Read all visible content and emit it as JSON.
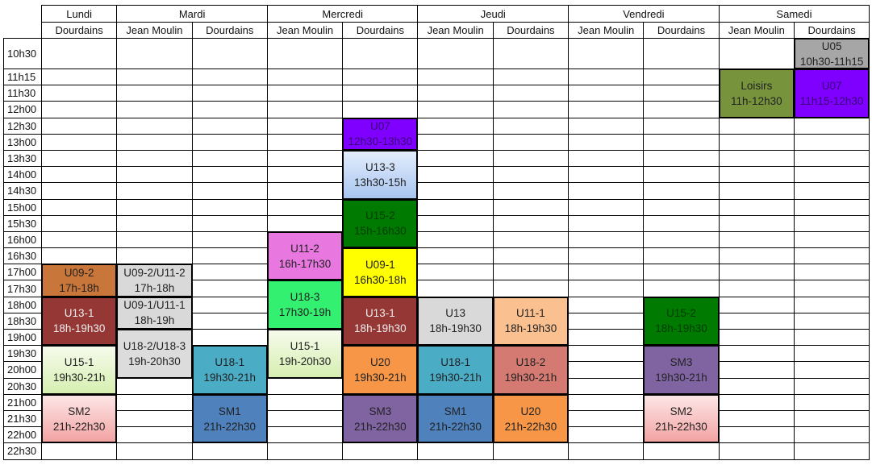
{
  "days": [
    {
      "name": "Lundi",
      "sites": [
        "Dourdains"
      ]
    },
    {
      "name": "Mardi",
      "sites": [
        "Jean Moulin",
        "Dourdains"
      ]
    },
    {
      "name": "Mercredi",
      "sites": [
        "Jean Moulin",
        "Dourdains"
      ]
    },
    {
      "name": "Jeudi",
      "sites": [
        "Jean Moulin",
        "Dourdains"
      ]
    },
    {
      "name": "Vendredi",
      "sites": [
        "Jean Moulin",
        "Dourdains"
      ]
    },
    {
      "name": "Samedi",
      "sites": [
        "Jean Moulin",
        "Dourdains"
      ]
    }
  ],
  "times": [
    "10h30",
    "11h15",
    "11h30",
    "12h00",
    "12h30",
    "13h00",
    "13h30",
    "14h00",
    "14h30",
    "15h00",
    "15h30",
    "16h00",
    "16h30",
    "17h00",
    "17h30",
    "18h00",
    "18h30",
    "19h00",
    "19h30",
    "20h00",
    "20h30",
    "21h00",
    "21h30",
    "22h00",
    "22h30"
  ],
  "events": [
    {
      "day": "Lundi",
      "site": "Dourdains",
      "label": "U09-2",
      "time": "17h-18h",
      "color": "#c8763a",
      "text": "#222"
    },
    {
      "day": "Lundi",
      "site": "Dourdains",
      "label": "U13-1",
      "time": "18h-19h30",
      "color": "#953735",
      "text": "#eee"
    },
    {
      "day": "Lundi",
      "site": "Dourdains",
      "label": "U15-1",
      "time": "19h30-21h",
      "color": "linear-gradient(#f6fbec,#d6efb0)",
      "text": "#222"
    },
    {
      "day": "Lundi",
      "site": "Dourdains",
      "label": "SM2",
      "time": "21h-22h30",
      "color": "linear-gradient(#fde6e6,#f3a3a3)",
      "text": "#222"
    },
    {
      "day": "Mardi",
      "site": "Jean Moulin",
      "label": "U09-2/U11-2",
      "time": "17h-18h",
      "color": "#d9d9d9",
      "text": "#222"
    },
    {
      "day": "Mardi",
      "site": "Jean Moulin",
      "label": "U09-1/U11-1",
      "time": "18h-19h",
      "color": "#d9d9d9",
      "text": "#222"
    },
    {
      "day": "Mardi",
      "site": "Jean Moulin",
      "label": "U18-2/U18-3",
      "time": "19h-20h30",
      "color": "#dcdcdc",
      "text": "#222"
    },
    {
      "day": "Mardi",
      "site": "Dourdains",
      "label": "U18-1",
      "time": "19h30-21h",
      "color": "#4bacc6",
      "text": "#222"
    },
    {
      "day": "Mardi",
      "site": "Dourdains",
      "label": "SM1",
      "time": "21h-22h30",
      "color": "#4f81bd",
      "text": "#222"
    },
    {
      "day": "Mercredi",
      "site": "Jean Moulin",
      "label": "U11-2",
      "time": "16h-17h30",
      "color": "#e878e0",
      "text": "#222"
    },
    {
      "day": "Mercredi",
      "site": "Jean Moulin",
      "label": "U18-3",
      "time": "17h30-19h",
      "color": "#33f070",
      "text": "#222"
    },
    {
      "day": "Mercredi",
      "site": "Jean Moulin",
      "label": "U15-1",
      "time": "19h-20h30",
      "color": "linear-gradient(#f6fbec,#d6efb0)",
      "text": "#222"
    },
    {
      "day": "Mercredi",
      "site": "Dourdains",
      "label": "U07",
      "time": "12h30-13h30",
      "color": "#7f00ff",
      "text": "#3a0077"
    },
    {
      "day": "Mercredi",
      "site": "Dourdains",
      "label": "U13-3",
      "time": "13h30-15h",
      "color": "linear-gradient(#e3edfc,#a8c5ef)",
      "text": "#222"
    },
    {
      "day": "Mercredi",
      "site": "Dourdains",
      "label": "U15-2",
      "time": "15h-16h30",
      "color": "#007a00",
      "text": "#003c00"
    },
    {
      "day": "Mercredi",
      "site": "Dourdains",
      "label": "U09-1",
      "time": "16h30-18h",
      "color": "#ffff00",
      "text": "#222"
    },
    {
      "day": "Mercredi",
      "site": "Dourdains",
      "label": "U13-1",
      "time": "18h-19h30",
      "color": "#953735",
      "text": "#eee"
    },
    {
      "day": "Mercredi",
      "site": "Dourdains",
      "label": "U20",
      "time": "19h30-21h",
      "color": "#f79646",
      "text": "#222"
    },
    {
      "day": "Mercredi",
      "site": "Dourdains",
      "label": "SM3",
      "time": "21h-22h30",
      "color": "#8064a2",
      "text": "#222"
    },
    {
      "day": "Jeudi",
      "site": "Jean Moulin",
      "label": "U13",
      "time": "18h-19h30",
      "color": "#d9d9d9",
      "text": "#222"
    },
    {
      "day": "Jeudi",
      "site": "Jean Moulin",
      "label": "U18-1",
      "time": "19h30-21h",
      "color": "#4bacc6",
      "text": "#222"
    },
    {
      "day": "Jeudi",
      "site": "Jean Moulin",
      "label": "SM1",
      "time": "21h-22h30",
      "color": "#4f81bd",
      "text": "#222"
    },
    {
      "day": "Jeudi",
      "site": "Dourdains",
      "label": "U11-1",
      "time": "18h-19h30",
      "color": "#fac090",
      "text": "#222"
    },
    {
      "day": "Jeudi",
      "site": "Dourdains",
      "label": "U18-2",
      "time": "19h30-21h",
      "color": "#d47a72",
      "text": "#222"
    },
    {
      "day": "Jeudi",
      "site": "Dourdains",
      "label": "U20",
      "time": "21h-22h30",
      "color": "#f79646",
      "text": "#222"
    },
    {
      "day": "Vendredi",
      "site": "Dourdains",
      "label": "U15-2",
      "time": "18h-19h30",
      "color": "#007a00",
      "text": "#003c00"
    },
    {
      "day": "Vendredi",
      "site": "Dourdains",
      "label": "SM3",
      "time": "19h30-21h",
      "color": "#8064a2",
      "text": "#222"
    },
    {
      "day": "Vendredi",
      "site": "Dourdains",
      "label": "SM2",
      "time": "21h-22h30",
      "color": "linear-gradient(#fde6e6,#f3a3a3)",
      "text": "#222"
    },
    {
      "day": "Samedi",
      "site": "Jean Moulin",
      "label": "Loisirs",
      "time": "11h-12h30",
      "color": "#77933c",
      "text": "#222"
    },
    {
      "day": "Samedi",
      "site": "Dourdains",
      "label": "U05",
      "time": "10h30-11h15",
      "color": "#a6a6a6",
      "text": "#222"
    },
    {
      "day": "Samedi",
      "site": "Dourdains",
      "label": "U07",
      "time": "11h15-12h30",
      "color": "#7f00ff",
      "text": "#3a0077"
    }
  ]
}
